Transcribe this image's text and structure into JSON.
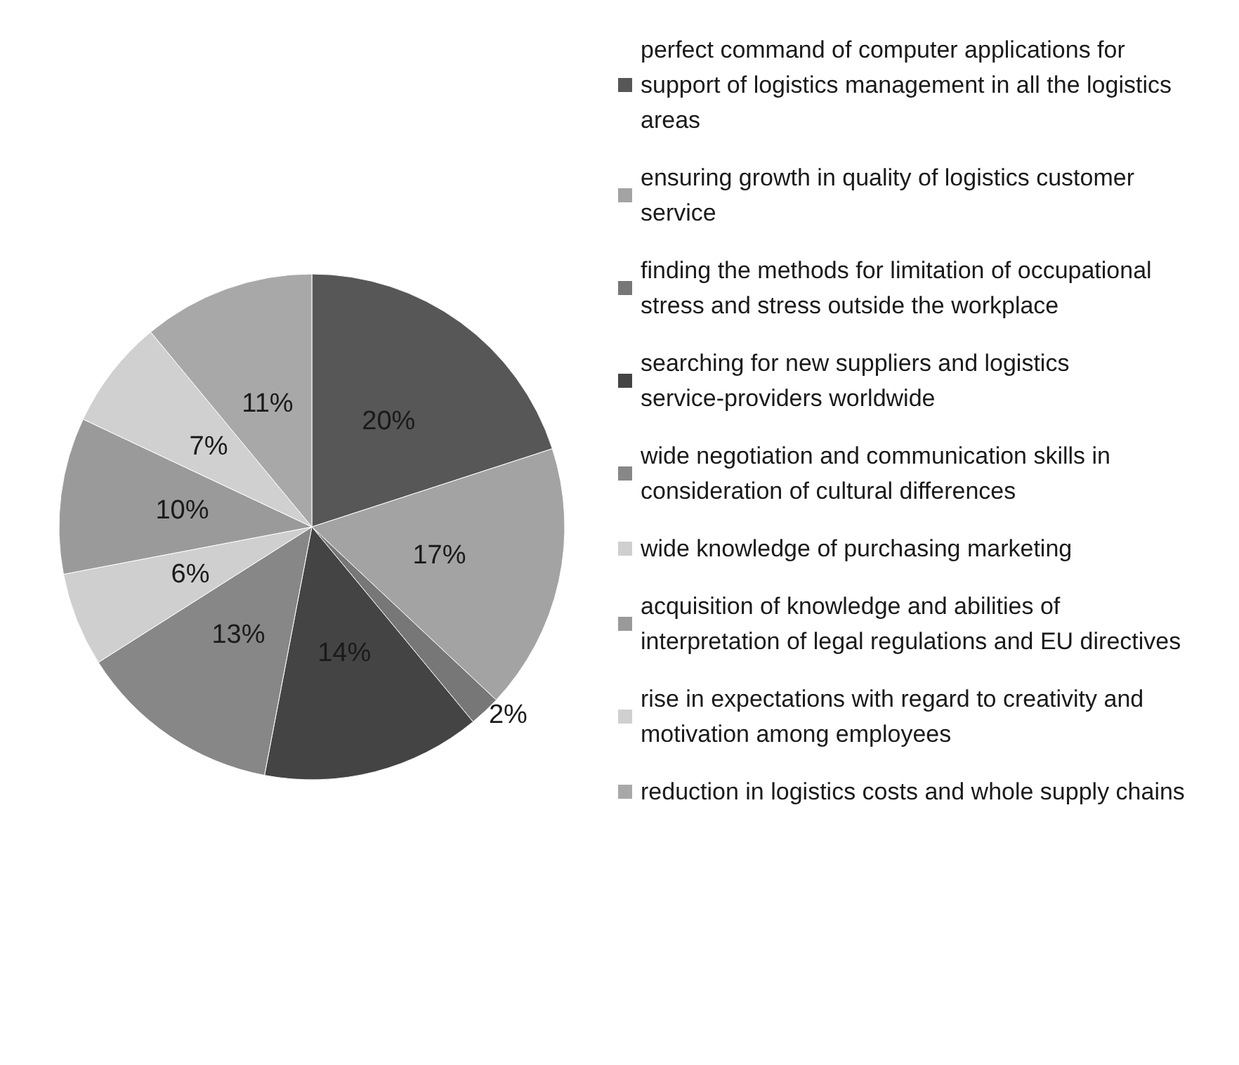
{
  "chart_data": {
    "type": "pie",
    "categories": [
      "perfect command of computer applications for support of logistics management in all the logistics areas",
      "ensuring growth in quality of logistics customer service",
      "finding the methods for limitation of occupational stress and stress outside the workplace",
      "searching for new suppliers and logistics service-providers worldwide",
      "wide negotiation and communication skills in consideration of cultural differences",
      "wide knowledge of purchasing marketing",
      "acquisition of knowledge and abilities of interpretation of legal regulations and EU directives",
      "rise in expectations with regard to creativity and motivation among employees",
      "reduction in logistics costs and whole supply chains"
    ],
    "values": [
      20,
      17,
      2,
      14,
      13,
      6,
      10,
      7,
      11
    ],
    "colors": [
      "#575757",
      "#a3a3a3",
      "#777777",
      "#444444",
      "#878787",
      "#cfcfcf",
      "#9a9a9a",
      "#d0d0d0",
      "#a8a8a8"
    ],
    "value_labels": [
      "20%",
      "17%",
      "2%",
      "14%",
      "13%",
      "6%",
      "10%",
      "7%",
      "11%"
    ],
    "legend": "right"
  }
}
